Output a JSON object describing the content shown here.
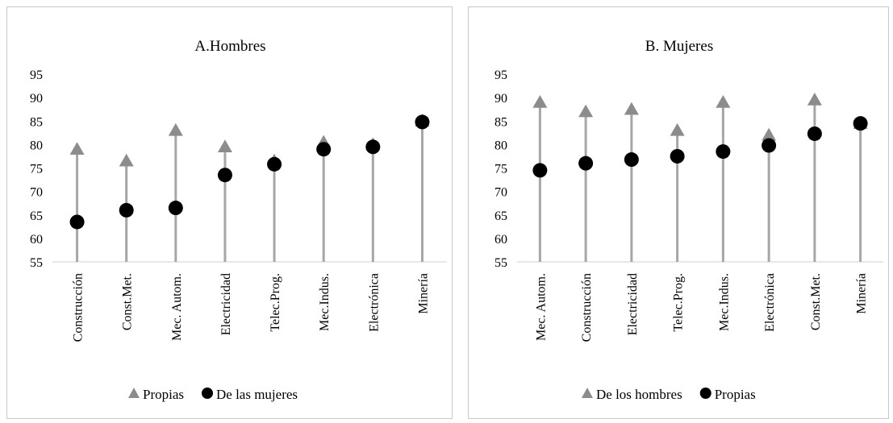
{
  "chart_data": [
    {
      "type": "scatter",
      "title": "A.Hombres",
      "ylim": [
        55,
        95
      ],
      "yticks": [
        55,
        60,
        65,
        70,
        75,
        80,
        85,
        90,
        95
      ],
      "categories": [
        "Construcción",
        "Const.Met.",
        "Mec. Autom.",
        "Electricidad",
        "Telec.Prog.",
        "Mec.Indus.",
        "Electrónica",
        "Minería"
      ],
      "series": [
        {
          "name": "Propias",
          "marker": "triangle",
          "color": "#8c8c8c",
          "values": [
            79,
            76.5,
            83,
            79.5,
            76.5,
            80.5,
            80,
            85
          ]
        },
        {
          "name": "De las mujeres",
          "marker": "circle",
          "color": "#000000",
          "values": [
            63.5,
            66,
            66.5,
            73.5,
            75.8,
            79,
            79.5,
            84.8
          ]
        }
      ],
      "stems_from_series": 0,
      "legend_position": "bottom",
      "grid": false
    },
    {
      "type": "scatter",
      "title": "B. Mujeres",
      "ylim": [
        55,
        95
      ],
      "yticks": [
        55,
        60,
        65,
        70,
        75,
        80,
        85,
        90,
        95
      ],
      "categories": [
        "Mec. Autom.",
        "Construcción",
        "Electricidad",
        "Telec.Prog.",
        "Mec.Indus.",
        "Electrónica",
        "Const.Met.",
        "Minería"
      ],
      "series": [
        {
          "name": "De los hombres",
          "marker": "triangle",
          "color": "#8c8c8c",
          "values": [
            89,
            87,
            87.5,
            83,
            89,
            82,
            89.5,
            84.5
          ]
        },
        {
          "name": "Propias",
          "marker": "circle",
          "color": "#000000",
          "values": [
            74.5,
            76,
            76.8,
            77.5,
            78.5,
            79.8,
            82.3,
            84.5
          ]
        }
      ],
      "stems_from_series": 0,
      "legend_position": "bottom",
      "grid": false
    }
  ]
}
